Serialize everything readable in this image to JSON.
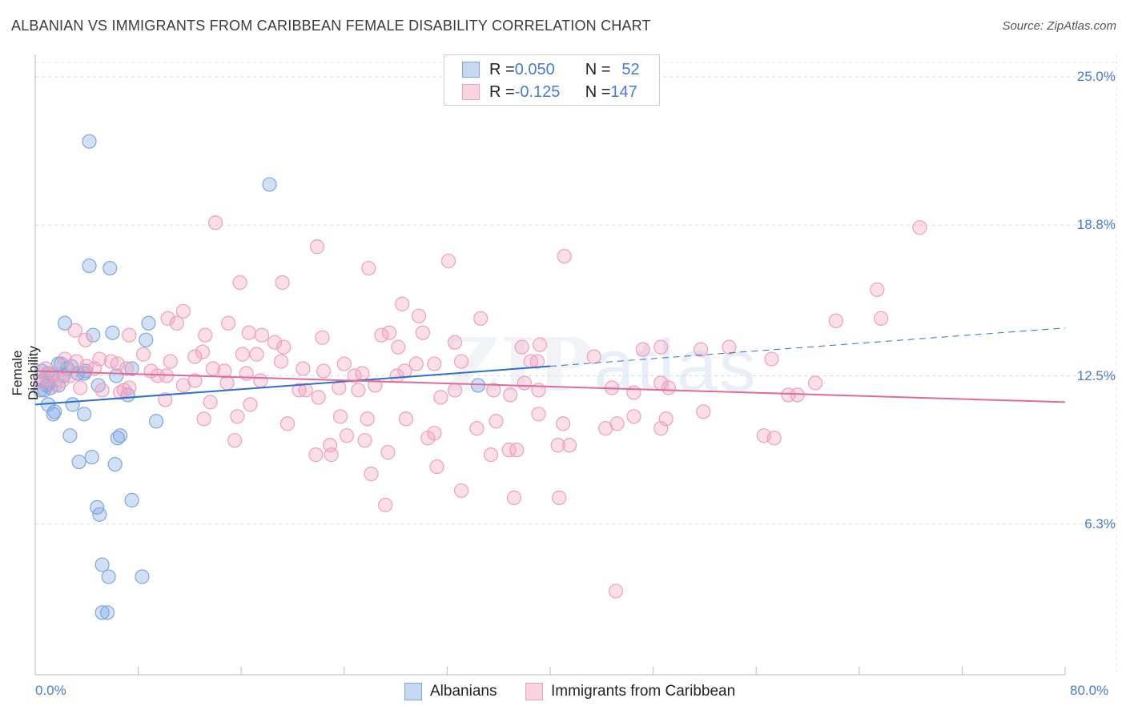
{
  "title": "ALBANIAN VS IMMIGRANTS FROM CARIBBEAN FEMALE DISABILITY CORRELATION CHART",
  "source": "Source: ZipAtlas.com",
  "watermark": {
    "zip": "ZIP",
    "atlas": "atlas"
  },
  "legend": {
    "rows": [
      {
        "r_label": "R = ",
        "r_value": "0.050",
        "n_label": "N = ",
        "n_value": "52",
        "color": "#7ea6e0"
      },
      {
        "r_label": "R = ",
        "r_value": "-0.125",
        "n_label": "N = ",
        "n_value": "147",
        "color": "#f0a0bc"
      }
    ]
  },
  "bottom_legend": [
    {
      "label": "Albanians",
      "color": "#7ea6e0"
    },
    {
      "label": "Immigrants from Caribbean",
      "color": "#f0a0bc"
    }
  ],
  "chart_data": {
    "type": "scatter",
    "title": "ALBANIAN VS IMMIGRANTS FROM CARIBBEAN FEMALE DISABILITY CORRELATION CHART",
    "xlabel": "",
    "ylabel": "Female Disability",
    "xlim": [
      0,
      80
    ],
    "ylim": [
      0,
      26
    ],
    "x_tick_labels": [
      "0.0%",
      "80.0%"
    ],
    "y_ticks": [
      6.3,
      12.5,
      18.8,
      25.0
    ],
    "y_tick_labels": [
      "6.3%",
      "12.5%",
      "18.8%",
      "25.0%"
    ],
    "grid": true,
    "legend_position": "top-center",
    "series": [
      {
        "name": "Albanians",
        "color": "#7ea6e0",
        "line_color": "#2f6fcc",
        "trend": {
          "x": [
            0,
            40
          ],
          "y": [
            11.3,
            12.9
          ],
          "dashed_to": [
            80,
            14.5
          ]
        },
        "points": [
          [
            4.2,
            22.3
          ],
          [
            18.2,
            20.5
          ],
          [
            4.2,
            17.1
          ],
          [
            5.8,
            17.0
          ],
          [
            2.3,
            14.7
          ],
          [
            8.8,
            14.7
          ],
          [
            4.5,
            14.2
          ],
          [
            6.0,
            14.3
          ],
          [
            8.6,
            14.0
          ],
          [
            1.8,
            13.0
          ],
          [
            2.0,
            13.0
          ],
          [
            2.8,
            12.9
          ],
          [
            3.3,
            12.6
          ],
          [
            3.8,
            12.6
          ],
          [
            3.9,
            12.7
          ],
          [
            0.5,
            12.7
          ],
          [
            1.0,
            12.6
          ],
          [
            1.3,
            12.5
          ],
          [
            0.6,
            12.3
          ],
          [
            1.2,
            12.0
          ],
          [
            0.4,
            11.9
          ],
          [
            0.7,
            11.9
          ],
          [
            1.8,
            12.1
          ],
          [
            2.5,
            12.8
          ],
          [
            6.3,
            12.5
          ],
          [
            7.5,
            12.8
          ],
          [
            7.2,
            11.7
          ],
          [
            4.9,
            12.1
          ],
          [
            1.0,
            11.3
          ],
          [
            1.5,
            11.0
          ],
          [
            2.9,
            11.3
          ],
          [
            1.4,
            10.9
          ],
          [
            3.8,
            10.9
          ],
          [
            2.7,
            10.0
          ],
          [
            6.6,
            10.0
          ],
          [
            6.4,
            9.9
          ],
          [
            9.4,
            10.6
          ],
          [
            4.4,
            9.1
          ],
          [
            3.4,
            8.9
          ],
          [
            6.2,
            8.8
          ],
          [
            7.5,
            7.3
          ],
          [
            4.8,
            7.0
          ],
          [
            5.0,
            6.7
          ],
          [
            5.2,
            4.6
          ],
          [
            5.7,
            4.1
          ],
          [
            8.3,
            4.1
          ],
          [
            5.2,
            2.6
          ],
          [
            5.6,
            2.6
          ],
          [
            34.4,
            12.1
          ],
          [
            0.9,
            12.1
          ],
          [
            2.2,
            12.5
          ],
          [
            1.1,
            12.2
          ]
        ]
      },
      {
        "name": "Immigrants from Caribbean",
        "color": "#f0a0bc",
        "line_color": "#e06a98",
        "trend": {
          "x": [
            0,
            80
          ],
          "y": [
            12.7,
            11.4
          ]
        },
        "points": [
          [
            14.0,
            18.9
          ],
          [
            21.9,
            17.9
          ],
          [
            25.9,
            17.0
          ],
          [
            32.1,
            17.3
          ],
          [
            41.1,
            17.5
          ],
          [
            68.7,
            18.7
          ],
          [
            65.4,
            16.1
          ],
          [
            15.9,
            16.4
          ],
          [
            19.2,
            16.4
          ],
          [
            28.5,
            15.5
          ],
          [
            29.8,
            15.0
          ],
          [
            34.6,
            14.9
          ],
          [
            65.7,
            14.9
          ],
          [
            62.2,
            14.8
          ],
          [
            11.5,
            15.2
          ],
          [
            10.3,
            14.9
          ],
          [
            11.0,
            14.7
          ],
          [
            15.0,
            14.7
          ],
          [
            3.1,
            14.4
          ],
          [
            3.9,
            14.0
          ],
          [
            7.3,
            14.2
          ],
          [
            13.2,
            14.2
          ],
          [
            16.6,
            14.3
          ],
          [
            17.6,
            14.2
          ],
          [
            22.3,
            14.1
          ],
          [
            26.9,
            14.2
          ],
          [
            27.5,
            14.3
          ],
          [
            30.1,
            14.3
          ],
          [
            18.6,
            13.9
          ],
          [
            19.3,
            13.7
          ],
          [
            28.2,
            13.7
          ],
          [
            32.6,
            13.9
          ],
          [
            37.8,
            13.7
          ],
          [
            39.2,
            13.8
          ],
          [
            47.2,
            13.6
          ],
          [
            48.6,
            13.7
          ],
          [
            53.9,
            13.7
          ],
          [
            8.4,
            13.4
          ],
          [
            12.4,
            13.3
          ],
          [
            13.0,
            13.5
          ],
          [
            16.1,
            13.4
          ],
          [
            17.2,
            13.4
          ],
          [
            19.1,
            13.1
          ],
          [
            10.5,
            13.1
          ],
          [
            6.4,
            13.0
          ],
          [
            5.0,
            13.2
          ],
          [
            3.2,
            13.1
          ],
          [
            2.3,
            13.2
          ],
          [
            4.0,
            12.9
          ],
          [
            4.6,
            12.8
          ],
          [
            5.9,
            13.1
          ],
          [
            7.1,
            12.8
          ],
          [
            9.0,
            12.7
          ],
          [
            13.8,
            12.8
          ],
          [
            14.7,
            12.7
          ],
          [
            16.4,
            12.6
          ],
          [
            20.8,
            12.8
          ],
          [
            22.4,
            12.7
          ],
          [
            24.0,
            13.0
          ],
          [
            25.4,
            12.6
          ],
          [
            28.7,
            12.7
          ],
          [
            29.6,
            13.0
          ],
          [
            31.0,
            13.0
          ],
          [
            33.1,
            13.1
          ],
          [
            38.5,
            13.1
          ],
          [
            39.0,
            13.1
          ],
          [
            43.4,
            13.3
          ],
          [
            51.7,
            13.6
          ],
          [
            57.2,
            13.2
          ],
          [
            0.8,
            12.8
          ],
          [
            1.5,
            12.6
          ],
          [
            0.9,
            12.4
          ],
          [
            2.1,
            12.3
          ],
          [
            1.5,
            12.1
          ],
          [
            0.4,
            12.2
          ],
          [
            3.5,
            12.0
          ],
          [
            7.3,
            12.0
          ],
          [
            9.5,
            12.5
          ],
          [
            10.2,
            12.5
          ],
          [
            11.5,
            12.1
          ],
          [
            12.4,
            12.3
          ],
          [
            14.9,
            12.2
          ],
          [
            17.5,
            12.3
          ],
          [
            20.5,
            11.9
          ],
          [
            21.0,
            11.9
          ],
          [
            23.6,
            12.0
          ],
          [
            25.1,
            11.9
          ],
          [
            26.4,
            12.1
          ],
          [
            28.1,
            12.5
          ],
          [
            32.6,
            11.9
          ],
          [
            35.6,
            11.9
          ],
          [
            38.0,
            12.2
          ],
          [
            39.1,
            11.9
          ],
          [
            44.8,
            12.0
          ],
          [
            48.6,
            12.2
          ],
          [
            49.2,
            12.0
          ],
          [
            60.6,
            12.2
          ],
          [
            58.5,
            11.7
          ],
          [
            59.2,
            11.7
          ],
          [
            46.5,
            11.8
          ],
          [
            36.9,
            11.7
          ],
          [
            31.5,
            11.6
          ],
          [
            22.0,
            11.6
          ],
          [
            13.6,
            11.4
          ],
          [
            10.1,
            11.5
          ],
          [
            5.2,
            11.9
          ],
          [
            6.6,
            11.8
          ],
          [
            6.9,
            11.9
          ],
          [
            2.7,
            12.5
          ],
          [
            16.7,
            11.3
          ],
          [
            13.1,
            10.7
          ],
          [
            15.7,
            10.8
          ],
          [
            19.6,
            10.5
          ],
          [
            23.7,
            10.8
          ],
          [
            25.8,
            10.7
          ],
          [
            28.8,
            10.7
          ],
          [
            31.0,
            10.1
          ],
          [
            34.3,
            10.3
          ],
          [
            35.8,
            10.6
          ],
          [
            39.1,
            10.9
          ],
          [
            41.0,
            10.5
          ],
          [
            44.3,
            10.3
          ],
          [
            45.2,
            10.5
          ],
          [
            46.5,
            10.8
          ],
          [
            48.6,
            10.3
          ],
          [
            49.0,
            10.7
          ],
          [
            51.9,
            11.0
          ],
          [
            57.4,
            9.9
          ],
          [
            56.6,
            10.0
          ],
          [
            30.5,
            9.9
          ],
          [
            24.2,
            10.0
          ],
          [
            22.9,
            9.6
          ],
          [
            15.5,
            9.8
          ],
          [
            25.6,
            9.8
          ],
          [
            27.4,
            9.3
          ],
          [
            35.4,
            9.2
          ],
          [
            36.8,
            9.4
          ],
          [
            37.4,
            9.4
          ],
          [
            40.6,
            9.6
          ],
          [
            41.5,
            9.6
          ],
          [
            21.8,
            9.2
          ],
          [
            23.0,
            9.2
          ],
          [
            31.2,
            8.7
          ],
          [
            26.1,
            8.4
          ],
          [
            33.1,
            7.7
          ],
          [
            37.2,
            7.4
          ],
          [
            40.7,
            7.4
          ],
          [
            27.2,
            7.1
          ],
          [
            45.1,
            3.5
          ],
          [
            24.8,
            12.5
          ]
        ]
      }
    ]
  }
}
